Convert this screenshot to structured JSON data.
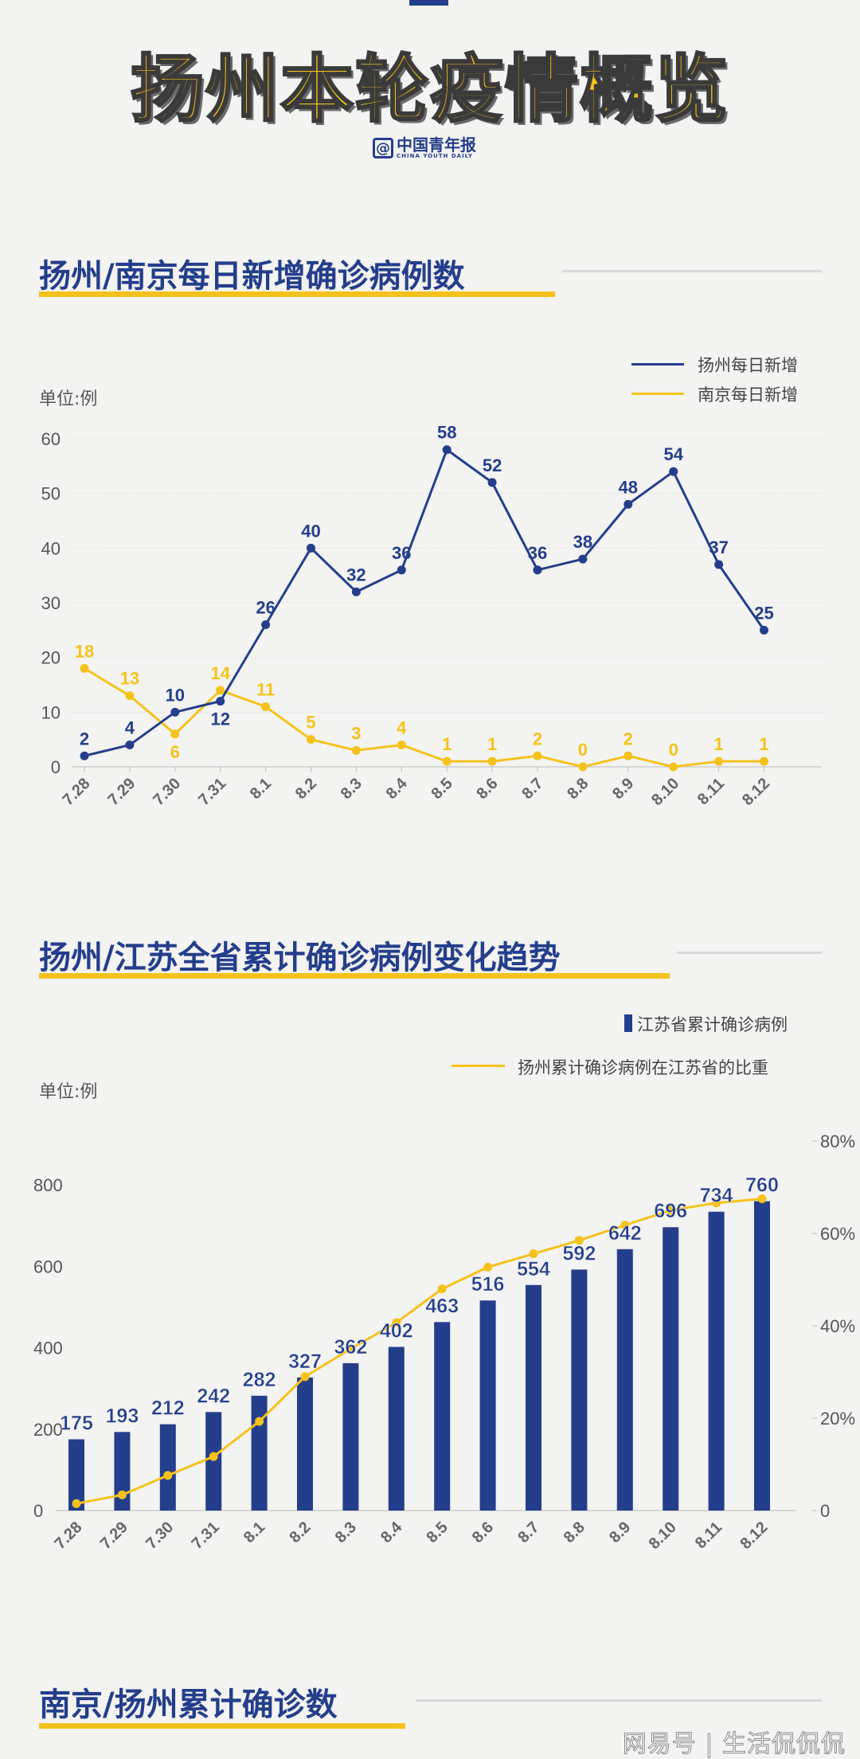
{
  "header": {
    "title": "扬州本轮疫情概览",
    "logo_cn": "中国青年报",
    "logo_en": "CHINA YOUTH DAILY"
  },
  "sections": [
    {
      "title": "扬州/南京每日新增确诊病例数"
    },
    {
      "title": "扬州/江苏全省累计确诊病例变化趋势"
    },
    {
      "title": "南京/扬州累计确诊数"
    }
  ],
  "watermark": "网易号 | 生活侃侃侃",
  "chart_data": [
    {
      "type": "line",
      "unit_label": "单位:例",
      "categories": [
        "7.28",
        "7.29",
        "7.30",
        "7.31",
        "8.1",
        "8.2",
        "8.3",
        "8.4",
        "8.5",
        "8.6",
        "8.7",
        "8.8",
        "8.9",
        "8.10",
        "8.11",
        "8.12"
      ],
      "ylim": [
        0,
        60
      ],
      "yticks": [
        0,
        10,
        20,
        30,
        40,
        50,
        60
      ],
      "grid": true,
      "legend_position": "top-right",
      "series": [
        {
          "name": "扬州每日新增",
          "color": "#233e8b",
          "values": [
            2,
            4,
            10,
            12,
            26,
            40,
            32,
            36,
            58,
            52,
            36,
            38,
            48,
            54,
            37,
            25
          ]
        },
        {
          "name": "南京每日新增",
          "color": "#f5c21b",
          "values": [
            18,
            13,
            6,
            14,
            11,
            5,
            3,
            4,
            1,
            1,
            2,
            0,
            2,
            0,
            1,
            1
          ]
        }
      ]
    },
    {
      "type": "bar+line",
      "unit_label": "单位:例",
      "categories": [
        "7.28",
        "7.29",
        "7.30",
        "7.31",
        "8.1",
        "8.2",
        "8.3",
        "8.4",
        "8.5",
        "8.6",
        "8.7",
        "8.8",
        "8.9",
        "8.10",
        "8.11",
        "8.12"
      ],
      "ylim_left": [
        0,
        800
      ],
      "yticks_left": [
        0,
        200,
        400,
        600,
        800
      ],
      "ylim_right": [
        0,
        80
      ],
      "yticks_right": [
        "0",
        "20%",
        "40%",
        "60%",
        "80%"
      ],
      "legend_position": "top-right",
      "bars": {
        "name": "江苏省累计确诊病例",
        "color": "#233e8b",
        "values": [
          175,
          193,
          212,
          242,
          282,
          327,
          362,
          402,
          463,
          516,
          554,
          592,
          642,
          696,
          734,
          760
        ]
      },
      "line": {
        "name": "扬州累计确诊病例在江苏省的比重",
        "color": "#f5c21b",
        "values_percent": [
          1.5,
          3.4,
          7.6,
          11.7,
          19.3,
          29,
          35,
          40.7,
          48,
          52.7,
          55.6,
          58.5,
          61.8,
          65,
          66.6,
          67.5
        ]
      }
    }
  ]
}
